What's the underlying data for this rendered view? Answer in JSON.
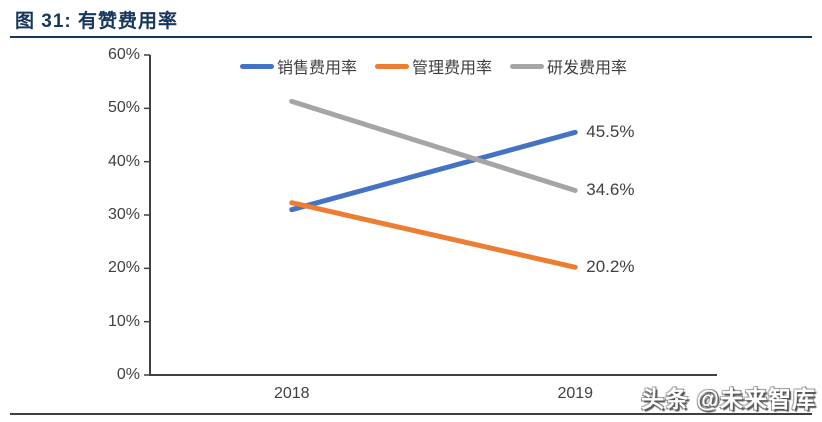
{
  "figure": {
    "title": "图 31: 有赞费用率",
    "watermark": "头条 @未来智库"
  },
  "chart_data": {
    "type": "line",
    "title": "有赞费用率",
    "categories": [
      "2018",
      "2019"
    ],
    "series": [
      {
        "name": "销售费用率",
        "values": [
          31.0,
          45.5
        ],
        "color": "#4472C4",
        "end_label": "45.5%"
      },
      {
        "name": "管理费用率",
        "values": [
          32.3,
          20.2
        ],
        "color": "#ED7D31",
        "end_label": "20.2%"
      },
      {
        "name": "研发费用率",
        "values": [
          51.3,
          34.6
        ],
        "color": "#A5A5A5",
        "end_label": "34.6%"
      }
    ],
    "ylim": [
      0,
      60
    ],
    "y_tick_step": 10,
    "y_ticks": [
      "0%",
      "10%",
      "20%",
      "30%",
      "40%",
      "50%",
      "60%"
    ],
    "grid": false,
    "legend_position": "top",
    "axis_color": "#404040"
  }
}
